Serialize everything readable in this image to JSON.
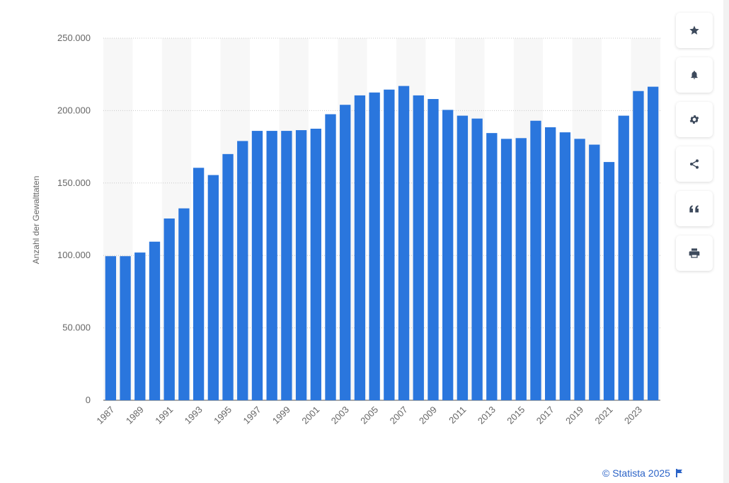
{
  "chart_data": {
    "type": "bar",
    "title": "",
    "xlabel": "",
    "ylabel": "Anzahl der Gewalttaten",
    "ylim": [
      0,
      250000
    ],
    "yticks": [
      0,
      50000,
      100000,
      150000,
      200000,
      250000
    ],
    "ytick_labels": [
      "0",
      "50.000",
      "100.000",
      "150.000",
      "200.000",
      "250.000"
    ],
    "categories": [
      "1987",
      "1988",
      "1989",
      "1990",
      "1991",
      "1992",
      "1993",
      "1994",
      "1995",
      "1996",
      "1997",
      "1998",
      "1999",
      "2000",
      "2001",
      "2002",
      "2003",
      "2004",
      "2005",
      "2006",
      "2007",
      "2008",
      "2009",
      "2010",
      "2011",
      "2012",
      "2013",
      "2014",
      "2015",
      "2016",
      "2017",
      "2018",
      "2019",
      "2020",
      "2021",
      "2022",
      "2023",
      "2024"
    ],
    "xtick_labels_shown": [
      "1987",
      "1989",
      "1991",
      "1993",
      "1995",
      "1997",
      "1999",
      "2001",
      "2003",
      "2005",
      "2007",
      "2009",
      "2011",
      "2013",
      "2015",
      "2017",
      "2019",
      "2021",
      "2023"
    ],
    "values": [
      99500,
      99500,
      102000,
      109500,
      125500,
      132500,
      160500,
      155500,
      170000,
      179000,
      186000,
      186000,
      186000,
      186500,
      187500,
      197500,
      204000,
      210500,
      212500,
      214500,
      217000,
      210500,
      208000,
      200500,
      196500,
      194500,
      184500,
      180500,
      181000,
      193000,
      188500,
      185000,
      180500,
      176500,
      164500,
      196500,
      213500,
      216500
    ],
    "bar_color": "#2a76dd",
    "grid": true,
    "legend": "none"
  },
  "toolbar": {
    "items": [
      {
        "name": "star-icon",
        "label": "Favorit"
      },
      {
        "name": "bell-icon",
        "label": "Benachrichtigung"
      },
      {
        "name": "gear-icon",
        "label": "Einstellungen"
      },
      {
        "name": "share-icon",
        "label": "Teilen"
      },
      {
        "name": "quote-icon",
        "label": "Zitieren"
      },
      {
        "name": "print-icon",
        "label": "Drucken"
      }
    ]
  },
  "credit": {
    "text": "© Statista 2025",
    "icon": "flag-icon",
    "color": "#2b63c7"
  }
}
